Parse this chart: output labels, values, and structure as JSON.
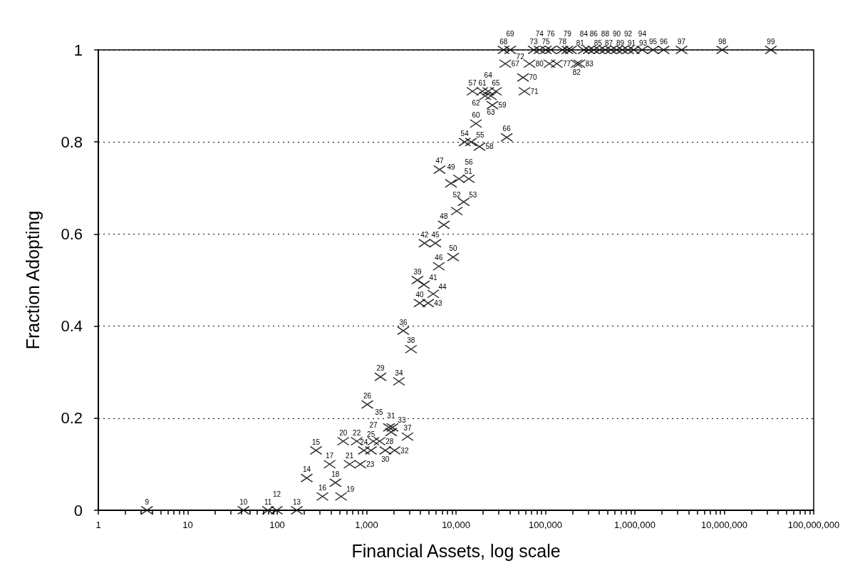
{
  "chart_data": {
    "type": "scatter",
    "xlabel": "Financial Assets, log scale",
    "ylabel": "Fraction Adopting",
    "log": "x",
    "grid": "y",
    "marker": "cross",
    "x": [
      3.5,
      42,
      79,
      99,
      166,
      214,
      272,
      321,
      386,
      448,
      519,
      548,
      646,
      776,
      851,
      933,
      1120,
      1020,
      1190,
      1400,
      1430,
      1620,
      1880,
      2060,
      1950,
      2300,
      1780,
      2570,
      2870,
      3140,
      3710,
      3920,
      4380,
      4450,
      4880,
      5560,
      5870,
      6430,
      6550,
      7310,
      8790,
      9290,
      10800,
      10200,
      12200,
      12500,
      14700,
      13900,
      15300,
      18300,
      25500,
      16700,
      19700,
      21200,
      24600,
      22900,
      28000,
      36900,
      35600,
      34000,
      40400,
      56200,
      58300,
      66400,
      74100,
      85900,
      101000,
      115000,
      134000,
      155000,
      176000,
      111000,
      193000,
      223000,
      240000,
      269000,
      305000,
      347000,
      403000,
      466000,
      541000,
      626000,
      725000,
      840000,
      973000,
      1210000,
      1600000,
      2100000,
      3330000,
      9500000,
      33200000
    ],
    "series": [
      {
        "color": "#000000",
        "values": [
          0,
          0,
          0,
          0,
          0,
          0.07,
          0.13,
          0.03,
          0.1,
          0.06,
          0.03,
          0.15,
          0.1,
          0.15,
          0.1,
          0.13,
          0.13,
          0.23,
          0.15,
          0.15,
          0.29,
          0.13,
          0.17,
          0.13,
          0.18,
          0.28,
          0.18,
          0.39,
          0.16,
          0.35,
          0.5,
          0.45,
          0.49,
          0.58,
          0.45,
          0.47,
          0.58,
          0.53,
          0.74,
          0.62,
          0.71,
          0.55,
          0.72,
          0.65,
          0.67,
          0.8,
          0.8,
          0.72,
          0.91,
          0.79,
          0.88,
          0.84,
          0.91,
          0.9,
          0.9,
          0.91,
          0.91,
          0.81,
          0.97,
          1,
          1,
          0.94,
          0.91,
          0.97,
          1,
          1,
          1,
          1,
          0.97,
          1,
          1,
          0.97,
          1,
          0.97,
          0.97,
          1,
          1,
          1,
          1,
          1,
          1,
          1,
          1,
          1,
          1,
          1,
          1,
          1,
          1,
          1,
          1
        ]
      }
    ],
    "annotations": [
      {
        "text": "9",
        "x": 3.5,
        "y": 0
      },
      {
        "text": "10",
        "x": 42,
        "y": 0
      },
      {
        "text": "11",
        "x": 79,
        "y": 0
      },
      {
        "text": "12",
        "x": 99,
        "y": 0
      },
      {
        "text": "13",
        "x": 166,
        "y": 0
      },
      {
        "text": "14",
        "x": 214,
        "y": 0.07
      },
      {
        "text": "15",
        "x": 272,
        "y": 0.13
      },
      {
        "text": "16",
        "x": 321,
        "y": 0.03
      },
      {
        "text": "17",
        "x": 386,
        "y": 0.1
      },
      {
        "text": "18",
        "x": 448,
        "y": 0.06
      },
      {
        "text": "19",
        "x": 519,
        "y": 0.03
      },
      {
        "text": "20",
        "x": 548,
        "y": 0.15
      },
      {
        "text": "21",
        "x": 646,
        "y": 0.1
      },
      {
        "text": "22",
        "x": 776,
        "y": 0.15
      },
      {
        "text": "23",
        "x": 851,
        "y": 0.1
      },
      {
        "text": "24",
        "x": 933,
        "y": 0.13
      },
      {
        "text": "25",
        "x": 1120,
        "y": 0.13
      },
      {
        "text": "26",
        "x": 1020,
        "y": 0.23
      },
      {
        "text": "27",
        "x": 1190,
        "y": 0.15
      },
      {
        "text": "28",
        "x": 1400,
        "y": 0.15
      },
      {
        "text": "29",
        "x": 1430,
        "y": 0.29
      },
      {
        "text": "30",
        "x": 1620,
        "y": 0.13
      },
      {
        "text": "31",
        "x": 1880,
        "y": 0.17
      },
      {
        "text": "32",
        "x": 2060,
        "y": 0.13
      },
      {
        "text": "33",
        "x": 1950,
        "y": 0.18
      },
      {
        "text": "34",
        "x": 2300,
        "y": 0.28
      },
      {
        "text": "35",
        "x": 1780,
        "y": 0.18
      },
      {
        "text": "36",
        "x": 2570,
        "y": 0.39
      },
      {
        "text": "37",
        "x": 2870,
        "y": 0.16
      },
      {
        "text": "38",
        "x": 3140,
        "y": 0.35
      },
      {
        "text": "39",
        "x": 3710,
        "y": 0.5
      },
      {
        "text": "40",
        "x": 3920,
        "y": 0.45
      },
      {
        "text": "41",
        "x": 4380,
        "y": 0.49
      },
      {
        "text": "42",
        "x": 4450,
        "y": 0.58
      },
      {
        "text": "43",
        "x": 4880,
        "y": 0.45
      },
      {
        "text": "44",
        "x": 5560,
        "y": 0.47
      },
      {
        "text": "45",
        "x": 5870,
        "y": 0.58
      },
      {
        "text": "46",
        "x": 6430,
        "y": 0.53
      },
      {
        "text": "47",
        "x": 6550,
        "y": 0.74
      },
      {
        "text": "48",
        "x": 7310,
        "y": 0.62
      },
      {
        "text": "49",
        "x": 8790,
        "y": 0.71
      },
      {
        "text": "50",
        "x": 9290,
        "y": 0.55
      },
      {
        "text": "51",
        "x": 10800,
        "y": 0.72
      },
      {
        "text": "52",
        "x": 10200,
        "y": 0.65
      },
      {
        "text": "53",
        "x": 12200,
        "y": 0.67
      },
      {
        "text": "54",
        "x": 12500,
        "y": 0.8
      },
      {
        "text": "55",
        "x": 14700,
        "y": 0.8
      },
      {
        "text": "56",
        "x": 13900,
        "y": 0.72
      },
      {
        "text": "57",
        "x": 15300,
        "y": 0.91
      },
      {
        "text": "58",
        "x": 18300,
        "y": 0.79
      },
      {
        "text": "59",
        "x": 25500,
        "y": 0.88
      },
      {
        "text": "60",
        "x": 16700,
        "y": 0.84
      },
      {
        "text": "61",
        "x": 19700,
        "y": 0.91
      },
      {
        "text": "62",
        "x": 21200,
        "y": 0.9
      },
      {
        "text": "63",
        "x": 24600,
        "y": 0.9
      },
      {
        "text": "64",
        "x": 22900,
        "y": 0.91
      },
      {
        "text": "65",
        "x": 28000,
        "y": 0.91
      },
      {
        "text": "66",
        "x": 36900,
        "y": 0.81
      },
      {
        "text": "67",
        "x": 35600,
        "y": 0.97
      },
      {
        "text": "68",
        "x": 34000,
        "y": 1
      },
      {
        "text": "69",
        "x": 40400,
        "y": 1
      },
      {
        "text": "70",
        "x": 56200,
        "y": 0.94
      },
      {
        "text": "71",
        "x": 58300,
        "y": 0.91
      },
      {
        "text": "72",
        "x": 66400,
        "y": 0.97
      },
      {
        "text": "73",
        "x": 74100,
        "y": 1
      },
      {
        "text": "74",
        "x": 85900,
        "y": 1
      },
      {
        "text": "75",
        "x": 101000,
        "y": 1
      },
      {
        "text": "76",
        "x": 115000,
        "y": 1
      },
      {
        "text": "77",
        "x": 134000,
        "y": 0.97
      },
      {
        "text": "78",
        "x": 155000,
        "y": 1
      },
      {
        "text": "79",
        "x": 176000,
        "y": 1
      },
      {
        "text": "80",
        "x": 111000,
        "y": 0.97
      },
      {
        "text": "81",
        "x": 193000,
        "y": 1
      },
      {
        "text": "82",
        "x": 223000,
        "y": 0.97
      },
      {
        "text": "83",
        "x": 240000,
        "y": 0.97
      },
      {
        "text": "84",
        "x": 269000,
        "y": 1
      },
      {
        "text": "85",
        "x": 305000,
        "y": 1
      },
      {
        "text": "86",
        "x": 347000,
        "y": 1
      },
      {
        "text": "87",
        "x": 403000,
        "y": 1
      },
      {
        "text": "88",
        "x": 466000,
        "y": 1
      },
      {
        "text": "89",
        "x": 541000,
        "y": 1
      },
      {
        "text": "90",
        "x": 626000,
        "y": 1
      },
      {
        "text": "91",
        "x": 725000,
        "y": 1
      },
      {
        "text": "92",
        "x": 840000,
        "y": 1
      },
      {
        "text": "93",
        "x": 973000,
        "y": 1
      },
      {
        "text": "94",
        "x": 1210000,
        "y": 1
      },
      {
        "text": "95",
        "x": 1600000,
        "y": 1
      },
      {
        "text": "96",
        "x": 2100000,
        "y": 1
      },
      {
        "text": "97",
        "x": 3330000,
        "y": 1
      },
      {
        "text": "98",
        "x": 9500000,
        "y": 1
      },
      {
        "text": "99",
        "x": 33200000,
        "y": 1
      }
    ],
    "xlim": [
      1,
      100000000
    ],
    "ylim": [
      0,
      1
    ],
    "yticks": [
      0,
      0.2,
      0.4,
      0.6,
      0.8,
      1
    ],
    "xticks": [
      1,
      {
        "value": 2,
        "label": null
      },
      {
        "value": 3,
        "label": null
      },
      {
        "value": 4,
        "label": null
      },
      {
        "value": 5,
        "label": null
      },
      {
        "value": 6,
        "label": null
      },
      {
        "value": 7,
        "label": null
      },
      {
        "value": 8,
        "label": null
      },
      {
        "value": 9,
        "label": null
      },
      10,
      {
        "value": 20,
        "label": null
      },
      {
        "value": 30,
        "label": null
      },
      {
        "value": 40,
        "label": null
      },
      {
        "value": 50,
        "label": null
      },
      {
        "value": 60,
        "label": null
      },
      {
        "value": 70,
        "label": null
      },
      {
        "value": 80,
        "label": null
      },
      {
        "value": 90,
        "label": null
      },
      100,
      {
        "value": 200,
        "label": null
      },
      {
        "value": 300,
        "label": null
      },
      {
        "value": 400,
        "label": null
      },
      {
        "value": 500,
        "label": null
      },
      {
        "value": 600,
        "label": null
      },
      {
        "value": 700,
        "label": null
      },
      {
        "value": 800,
        "label": null
      },
      {
        "value": 900,
        "label": null
      },
      {
        "value": 1000,
        "label": "1,000"
      },
      {
        "value": 2000,
        "label": null
      },
      {
        "value": 3000,
        "label": null
      },
      {
        "value": 4000,
        "label": null
      },
      {
        "value": 5000,
        "label": null
      },
      {
        "value": 6000,
        "label": null
      },
      {
        "value": 7000,
        "label": null
      },
      {
        "value": 8000,
        "label": null
      },
      {
        "value": 9000,
        "label": null
      },
      {
        "value": 10000,
        "label": "10,000"
      },
      {
        "value": 20000,
        "label": null
      },
      {
        "value": 30000,
        "label": null
      },
      {
        "value": 40000,
        "label": null
      },
      {
        "value": 50000,
        "label": null
      },
      {
        "value": 60000,
        "label": null
      },
      {
        "value": 70000,
        "label": null
      },
      {
        "value": 80000,
        "label": null
      },
      {
        "value": 90000,
        "label": null
      },
      {
        "value": 100000,
        "label": "100,000"
      },
      {
        "value": 200000,
        "label": null
      },
      {
        "value": 300000,
        "label": null
      },
      {
        "value": 400000,
        "label": null
      },
      {
        "value": 500000,
        "label": null
      },
      {
        "value": 600000,
        "label": null
      },
      {
        "value": 700000,
        "label": null
      },
      {
        "value": 800000,
        "label": null
      },
      {
        "value": 900000,
        "label": null
      },
      {
        "value": 1000000,
        "label": "1,000,000"
      },
      {
        "value": 2000000,
        "label": null
      },
      {
        "value": 3000000,
        "label": null
      },
      {
        "value": 4000000,
        "label": null
      },
      {
        "value": 5000000,
        "label": null
      },
      {
        "value": 6000000,
        "label": null
      },
      {
        "value": 7000000,
        "label": null
      },
      {
        "value": 8000000,
        "label": null
      },
      {
        "value": 9000000,
        "label": null
      },
      {
        "value": 10000000,
        "label": "10,000,000"
      },
      {
        "value": 20000000,
        "label": null
      },
      {
        "value": 30000000,
        "label": null
      },
      {
        "value": 40000000,
        "label": null
      },
      {
        "value": 50000000,
        "label": null
      },
      {
        "value": 60000000,
        "label": null
      },
      {
        "value": 70000000,
        "label": null
      },
      {
        "value": 80000000,
        "label": null
      },
      {
        "value": 90000000,
        "label": null
      },
      {
        "value": 100000000,
        "label": "100,000,000"
      }
    ]
  }
}
